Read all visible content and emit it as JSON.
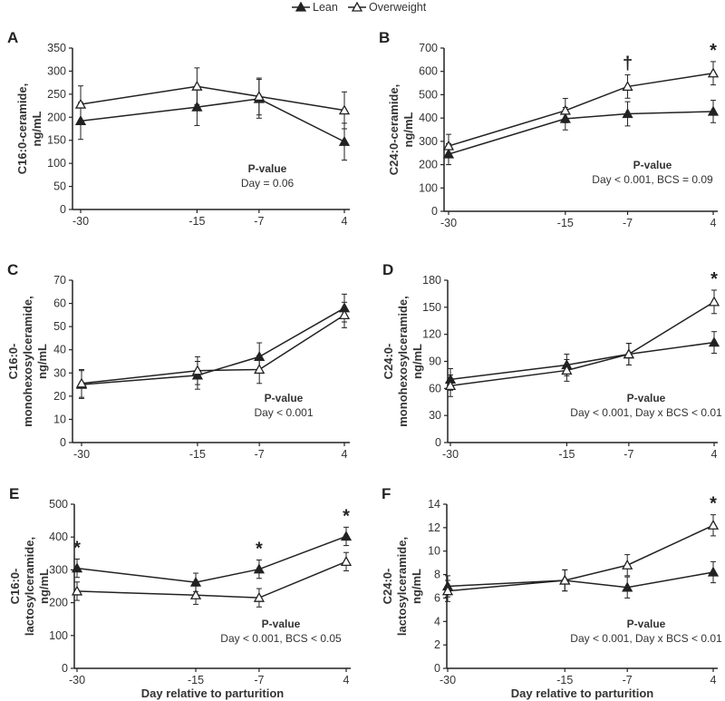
{
  "legend": {
    "lean": "Lean",
    "overweight": "Overweight"
  },
  "colors": {
    "line": "#222222",
    "axis": "#222222"
  },
  "chart_data": [
    {
      "type": "line",
      "panel": "A",
      "ylabel": [
        "C16:0-ceramide,",
        "ng/mL"
      ],
      "x": [
        -30,
        -15,
        -7,
        4
      ],
      "x_tick_labels": [
        "-30",
        "-15",
        "-7",
        "4"
      ],
      "ylim": [
        0,
        350
      ],
      "yticks": [
        0,
        50,
        100,
        150,
        200,
        250,
        300,
        350
      ],
      "series": [
        {
          "name": "Lean",
          "values": [
            192,
            222,
            240,
            147
          ],
          "se": [
            40,
            40,
            42,
            40
          ]
        },
        {
          "name": "Overweight",
          "values": [
            228,
            267,
            245,
            215
          ],
          "se": [
            40,
            40,
            40,
            40
          ]
        }
      ],
      "pvalue_title": "P-value",
      "pvalue_text": "Day = 0.06",
      "annotations": [],
      "xlabel": ""
    },
    {
      "type": "line",
      "panel": "B",
      "ylabel": [
        "C24:0-ceramide,",
        "ng/mL"
      ],
      "x": [
        -30,
        -15,
        -7,
        4
      ],
      "x_tick_labels": [
        "-30",
        "-15",
        "-7",
        "4"
      ],
      "ylim": [
        0,
        700
      ],
      "yticks": [
        0,
        100,
        200,
        300,
        400,
        500,
        600,
        700
      ],
      "series": [
        {
          "name": "Lean",
          "values": [
            245,
            397,
            418,
            428
          ],
          "se": [
            45,
            48,
            52,
            48
          ]
        },
        {
          "name": "Overweight",
          "values": [
            280,
            432,
            535,
            592
          ],
          "se": [
            50,
            52,
            50,
            50
          ]
        }
      ],
      "pvalue_title": "P-value",
      "pvalue_text": "Day < 0.001, BCS = 0.09",
      "annotations": [
        {
          "x": -7,
          "text": "†"
        },
        {
          "x": 4,
          "text": "*"
        }
      ],
      "xlabel": ""
    },
    {
      "type": "line",
      "panel": "C",
      "ylabel": [
        "C16:0-",
        "monohexosylceramide,",
        "ng/mL"
      ],
      "x": [
        -30,
        -15,
        -7,
        4
      ],
      "x_tick_labels": [
        "-30",
        "-15",
        "-7",
        "4"
      ],
      "ylim": [
        0,
        70
      ],
      "yticks": [
        0,
        10,
        20,
        30,
        40,
        50,
        60,
        70
      ],
      "series": [
        {
          "name": "Lean",
          "values": [
            25,
            29,
            37,
            58
          ],
          "se": [
            6,
            6,
            6,
            6
          ]
        },
        {
          "name": "Overweight",
          "values": [
            25.5,
            31,
            31.5,
            55
          ],
          "se": [
            6,
            6,
            6,
            5.5
          ]
        }
      ],
      "pvalue_title": "P-value",
      "pvalue_text": "Day < 0.001",
      "annotations": [],
      "xlabel": ""
    },
    {
      "type": "line",
      "panel": "D",
      "ylabel": [
        "C24:0-",
        "monohexosylceramide,",
        "ng/mL"
      ],
      "x": [
        -30,
        -15,
        -7,
        4
      ],
      "x_tick_labels": [
        "-30",
        "-15",
        "-7",
        "4"
      ],
      "ylim": [
        0,
        180
      ],
      "yticks": [
        0,
        30,
        60,
        90,
        120,
        150,
        180
      ],
      "series": [
        {
          "name": "Lean",
          "values": [
            70,
            86,
            98,
            111
          ],
          "se": [
            12,
            12,
            12,
            12
          ]
        },
        {
          "name": "Overweight",
          "values": [
            63,
            80,
            98,
            156
          ],
          "se": [
            12,
            12,
            12,
            13
          ]
        }
      ],
      "pvalue_title": "P-value",
      "pvalue_text": "Day < 0.001, Day x BCS < 0.01",
      "annotations": [
        {
          "x": 4,
          "text": "*"
        }
      ],
      "xlabel": ""
    },
    {
      "type": "line",
      "panel": "E",
      "ylabel": [
        "C16:0-",
        "lactosylceramide,",
        "ng/mL"
      ],
      "x": [
        -30,
        -15,
        -7,
        4
      ],
      "x_tick_labels": [
        "-30",
        "-15",
        "-7",
        "4"
      ],
      "ylim": [
        0,
        500
      ],
      "yticks": [
        0,
        100,
        200,
        300,
        400,
        500
      ],
      "series": [
        {
          "name": "Lean",
          "values": [
            305,
            262,
            302,
            402
          ],
          "se": [
            28,
            28,
            28,
            28
          ]
        },
        {
          "name": "Overweight",
          "values": [
            235,
            223,
            215,
            325
          ],
          "se": [
            28,
            28,
            28,
            28
          ]
        }
      ],
      "pvalue_title": "P-value",
      "pvalue_text": "Day < 0.001, BCS < 0.05",
      "annotations": [
        {
          "x": -30,
          "text": "*"
        },
        {
          "x": -7,
          "text": "*"
        },
        {
          "x": 4,
          "text": "*"
        }
      ],
      "xlabel": "Day relative to parturition"
    },
    {
      "type": "line",
      "panel": "F",
      "ylabel": [
        "C24:0-",
        "lactosylceramide,",
        "ng/mL"
      ],
      "x": [
        -30,
        -15,
        -7,
        4
      ],
      "x_tick_labels": [
        "-30",
        "-15",
        "-7",
        "4"
      ],
      "ylim": [
        0,
        14
      ],
      "yticks": [
        0,
        2,
        4,
        6,
        8,
        10,
        12,
        14
      ],
      "series": [
        {
          "name": "Lean",
          "values": [
            7.0,
            7.5,
            6.9,
            8.2
          ],
          "se": [
            0.9,
            0.9,
            0.9,
            0.9
          ]
        },
        {
          "name": "Overweight",
          "values": [
            6.6,
            7.5,
            8.8,
            12.2
          ],
          "se": [
            0.9,
            0.9,
            0.9,
            0.9
          ]
        }
      ],
      "pvalue_title": "P-value",
      "pvalue_text": "Day < 0.001, Day x BCS < 0.01",
      "annotations": [
        {
          "x": 4,
          "text": "*"
        }
      ],
      "xlabel": "Day relative to parturition"
    }
  ]
}
